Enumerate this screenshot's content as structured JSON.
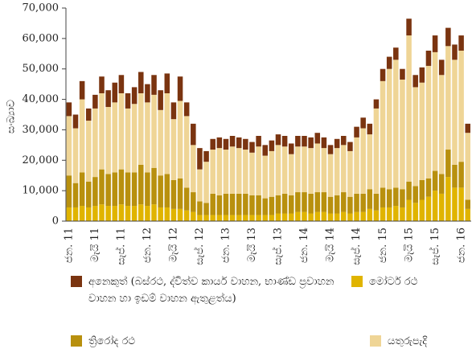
{
  "chart_data": {
    "type": "bar",
    "stacked": true,
    "y_label": "සංඛ්‍යාව",
    "categories": [
      "ජන. 11",
      null,
      null,
      null,
      "මැයි 11",
      null,
      null,
      null,
      "සැප්. 11",
      null,
      null,
      null,
      "ජන. 12",
      null,
      null,
      null,
      "මැයි 12",
      null,
      null,
      null,
      "සැප්. 12",
      null,
      null,
      null,
      "ජන. 13",
      null,
      null,
      null,
      "මැයි 13",
      null,
      null,
      null,
      "සැප්. 13",
      null,
      null,
      null,
      "ජන. 14",
      null,
      null,
      null,
      "මැයි 14",
      null,
      null,
      null,
      "සැප්. 14",
      null,
      null,
      null,
      "ජන. 15",
      null,
      null,
      null,
      "මැයි 15",
      null,
      null,
      null,
      "සැප්. 15",
      null,
      null,
      null,
      "ජන. 16",
      null
    ],
    "series": [
      {
        "name": "මෝටර් රථ",
        "color": "#e0b400",
        "values": [
          4500,
          4500,
          5000,
          4500,
          5000,
          5500,
          5000,
          5000,
          5500,
          5000,
          5000,
          5500,
          5000,
          5500,
          4500,
          4500,
          4000,
          4000,
          3500,
          3000,
          2000,
          2000,
          2000,
          2000,
          2000,
          2000,
          2000,
          2000,
          2000,
          2000,
          2000,
          2000,
          2500,
          2500,
          2500,
          3000,
          3000,
          2500,
          3000,
          3000,
          2500,
          2500,
          3000,
          2500,
          3000,
          3000,
          4000,
          3500,
          4500,
          4500,
          5000,
          4500,
          7000,
          6000,
          7000,
          8000,
          10000,
          9000,
          14500,
          11000,
          11000,
          4000
        ]
      },
      {
        "name": "ත්‍රිරෝද රථ",
        "color": "#b8900e",
        "values": [
          10500,
          8000,
          11000,
          8500,
          9500,
          11500,
          10500,
          11000,
          11500,
          11000,
          11000,
          13000,
          11000,
          12000,
          10500,
          11000,
          9500,
          10000,
          7500,
          6500,
          4500,
          4000,
          7000,
          6500,
          7000,
          7000,
          7000,
          7000,
          6500,
          6500,
          5500,
          6000,
          6000,
          6500,
          6000,
          6500,
          6500,
          6500,
          6500,
          6500,
          5500,
          6000,
          6500,
          5500,
          6000,
          6000,
          6500,
          5500,
          6500,
          6000,
          6000,
          6000,
          6000,
          5500,
          6500,
          6000,
          6500,
          6500,
          9000,
          7500,
          8500,
          3000
        ]
      },
      {
        "name": "යතුරුපැදි",
        "color": "#efd596",
        "values": [
          19500,
          18000,
          24000,
          20000,
          22500,
          25000,
          22000,
          23000,
          25000,
          21000,
          22500,
          23500,
          23000,
          24000,
          21500,
          26500,
          20000,
          25500,
          23500,
          15500,
          10500,
          13500,
          14500,
          15500,
          14500,
          15500,
          15000,
          14500,
          14000,
          16000,
          14000,
          15000,
          16500,
          15500,
          13500,
          15000,
          15000,
          15000,
          16000,
          14500,
          14000,
          15500,
          15500,
          15000,
          18500,
          21500,
          18000,
          28000,
          35000,
          39500,
          42000,
          36000,
          48000,
          32500,
          32000,
          37000,
          39000,
          32500,
          34000,
          34500,
          36500,
          22000
        ]
      },
      {
        "name": "අනෙකුත් (බස්රථ, ද්විත්ව කාර්ය වාහන, භාණ්ඩ ප්‍රවාහන වාහන හා ඉඩම් වාහන ඇතුළත්ය)",
        "color": "#7a3410",
        "values": [
          4500,
          4500,
          6000,
          4000,
          4500,
          5500,
          5500,
          6500,
          6000,
          5000,
          5500,
          7000,
          6000,
          6500,
          6500,
          6500,
          5500,
          8000,
          4500,
          7000,
          7000,
          3500,
          3500,
          3500,
          3500,
          3500,
          3500,
          3500,
          3500,
          3500,
          3500,
          3500,
          3500,
          3500,
          3500,
          3500,
          3500,
          3500,
          3500,
          3500,
          3000,
          3000,
          3000,
          3000,
          3500,
          3500,
          3500,
          3000,
          4000,
          4000,
          4000,
          3500,
          5500,
          4000,
          5000,
          5000,
          5500,
          5000,
          6000,
          5000,
          5000,
          3000
        ]
      }
    ],
    "ylim": [
      0,
      70000
    ],
    "yticks": [
      0,
      {
        "value": 10000,
        "label": "10,000"
      },
      {
        "value": 20000,
        "label": "20,000"
      },
      {
        "value": 30000,
        "label": "30,000"
      },
      {
        "value": 40000,
        "label": "40,000"
      },
      {
        "value": 50000,
        "label": "50,000"
      },
      {
        "value": 60000,
        "label": "60,000"
      },
      {
        "value": 70000,
        "label": "70,000"
      }
    ],
    "grid": false
  }
}
